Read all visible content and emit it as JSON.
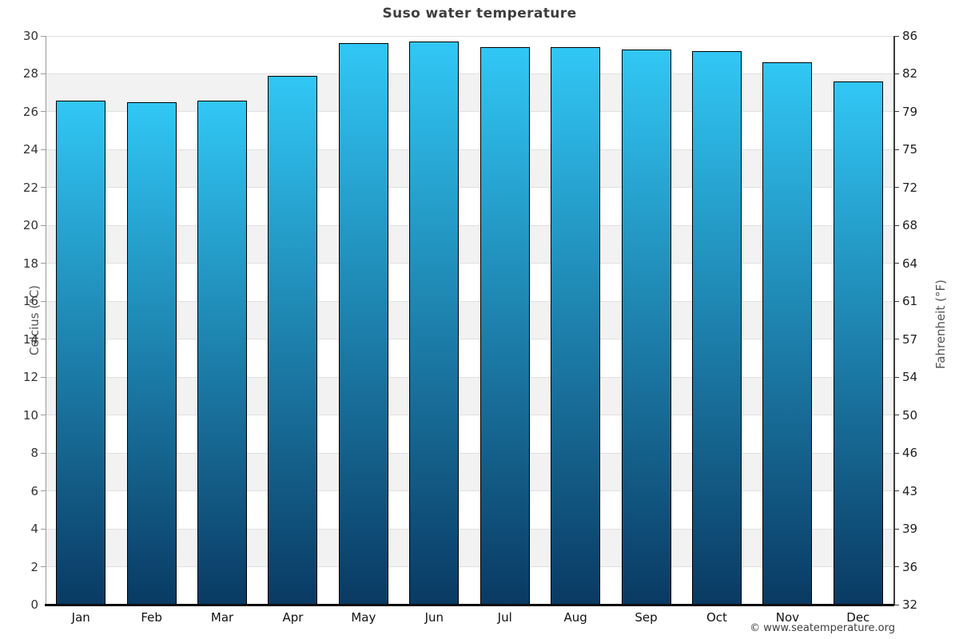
{
  "chart_data": {
    "type": "bar",
    "title": "Suso water temperature",
    "categories": [
      "Jan",
      "Feb",
      "Mar",
      "Apr",
      "May",
      "Jun",
      "Jul",
      "Aug",
      "Sep",
      "Oct",
      "Nov",
      "Dec"
    ],
    "values": [
      26.6,
      26.5,
      26.6,
      27.9,
      29.6,
      29.7,
      29.4,
      29.4,
      29.3,
      29.2,
      28.6,
      27.6
    ],
    "ylabel_left": "Celcius (°C)",
    "ylabel_right": "Fahrenheit (°F)",
    "ylim": [
      0,
      30
    ],
    "celsius_ticks": [
      0,
      2,
      4,
      6,
      8,
      10,
      12,
      14,
      16,
      18,
      20,
      22,
      24,
      26,
      28,
      30
    ],
    "fahrenheit_ticks": [
      32,
      36,
      39,
      43,
      46,
      50,
      54,
      57,
      61,
      64,
      68,
      72,
      75,
      79,
      82,
      86
    ],
    "band_step": 2,
    "legend": "none",
    "grid": "alternating horizontal bands every 2°C, light gridlines at each tick"
  },
  "colors": {
    "bar_gradient_top": "#31c7f5",
    "bar_gradient_bottom": "#093a63",
    "bar_border": "#000000",
    "band_gray": "#f2f2f2",
    "gridline": "#e0e0e0",
    "title_text": "#3e3e3e",
    "tick_text": "#333333",
    "axis_label_text": "#555555",
    "footer_text": "#3f3f3f"
  },
  "footer": {
    "copyright": "© www.seatemperature.org"
  }
}
